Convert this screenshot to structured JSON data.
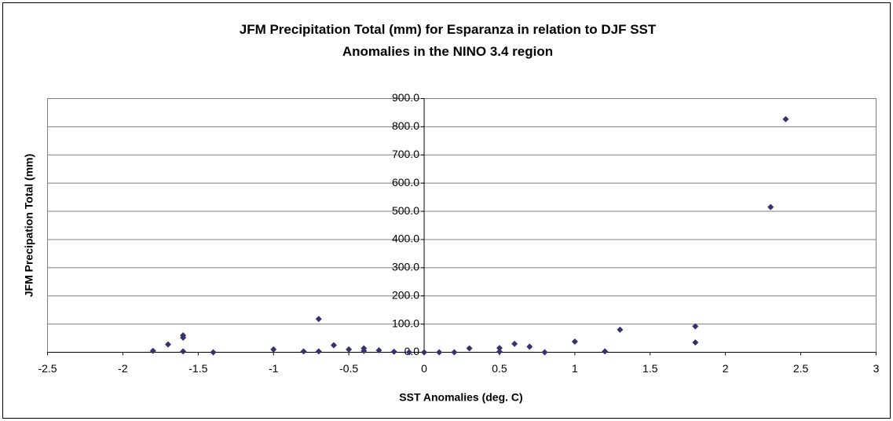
{
  "chart_data": {
    "type": "scatter",
    "title": "JFM Precipitation Total (mm) for Esparanza in relation to DJF SST Anomalies in the NINO 3.4 region",
    "x_label": "SST Anomalies (deg. C)",
    "y_label": "JFM Precipation Total (mm)",
    "color": "#333370",
    "grid": true,
    "x": [
      -1.8,
      -1.7,
      -1.6,
      -1.6,
      -1.6,
      -1.4,
      -1.0,
      -0.8,
      -0.7,
      -0.7,
      -0.6,
      -0.5,
      -0.4,
      -0.4,
      -0.3,
      -0.2,
      -0.1,
      0,
      0.1,
      0.2,
      0.3,
      0.5,
      0.5,
      0.6,
      0.7,
      0.8,
      1.0,
      1.2,
      1.3,
      1.8,
      1.8,
      2.3,
      2.4
    ],
    "values": [
      5,
      28,
      60,
      52,
      3,
      0,
      10,
      3,
      118,
      3,
      25,
      10,
      14,
      5,
      7,
      2,
      0,
      0,
      0,
      0,
      14,
      15,
      2,
      30,
      20,
      0,
      38,
      3,
      80,
      92,
      35,
      515,
      827
    ],
    "xlim": [
      -2.5,
      3
    ],
    "xticks": [
      -2.5,
      -2,
      -1.5,
      -1,
      -0.5,
      0,
      0.5,
      1,
      1.5,
      2,
      2.5,
      3
    ],
    "ylim": [
      0,
      900
    ],
    "yticks": [
      {
        "value": 0,
        "label": "0.0"
      },
      {
        "value": 100,
        "label": "100.0"
      },
      {
        "value": 200,
        "label": "200.0"
      },
      {
        "value": 300,
        "label": "300.0"
      },
      {
        "value": 400,
        "label": "400.0"
      },
      {
        "value": 500,
        "label": "500.0"
      },
      {
        "value": 600,
        "label": "600.0"
      },
      {
        "value": 700,
        "label": "700.0"
      },
      {
        "value": 800,
        "label": "800.0"
      },
      {
        "value": 900,
        "label": "900.0"
      }
    ]
  }
}
